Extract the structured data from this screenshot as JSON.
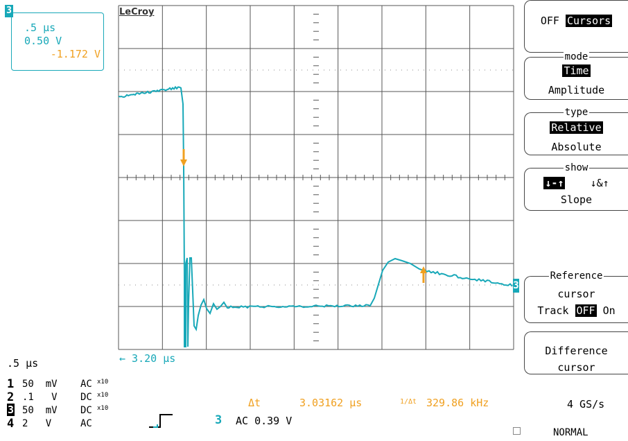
{
  "brand": "LeCroy",
  "channel_box": {
    "badge": "3",
    "timebase": ".5 μs",
    "volts_div": "0.50 V",
    "offset": "-1.172 V"
  },
  "trace_marker": "3",
  "delta_arrow_label": "← 3.20 μs",
  "timebase_bottom": ".5 μs",
  "channels": [
    {
      "num": "1",
      "value": "50  mV",
      "coupling": "AC",
      "probe": "x10",
      "highlight": false
    },
    {
      "num": "2",
      "value": ".1   V",
      "coupling": "DC",
      "probe": "x10",
      "highlight": false
    },
    {
      "num": "3",
      "value": "50  mV",
      "coupling": "DC",
      "probe": "x10",
      "highlight": true
    },
    {
      "num": "4",
      "value": "2   V",
      "coupling": "AC",
      "probe": "",
      "highlight": false
    }
  ],
  "measure": {
    "delta_t_label": "Δt",
    "delta_t_value": "3.03162 μs",
    "inv_label": "1/Δt",
    "inv_value": "329.86 kHz"
  },
  "trigger": {
    "channel": "3",
    "text": "AC 0.39 V"
  },
  "sample_rate": "4 GS/s",
  "mode": "NORMAL",
  "menu": {
    "cursors": {
      "off": "OFF",
      "label": "Cursors"
    },
    "mode": {
      "title": "mode",
      "opt1": "Time",
      "opt2": "Amplitude"
    },
    "type": {
      "title": "type",
      "opt1": "Relative",
      "opt2": "Absolute"
    },
    "show": {
      "title": "show",
      "opt1": "↓-↑",
      "opt2": "↓&↑",
      "opt3": "Slope"
    },
    "reference": {
      "title": "Reference",
      "line1": "cursor",
      "track": "Track",
      "off": "OFF",
      "on": "On"
    },
    "difference": {
      "line1": "Difference",
      "line2": "cursor"
    }
  },
  "colors": {
    "trace": "#17a8b8",
    "cursor": "#f0a020",
    "grid": "#555555"
  }
}
